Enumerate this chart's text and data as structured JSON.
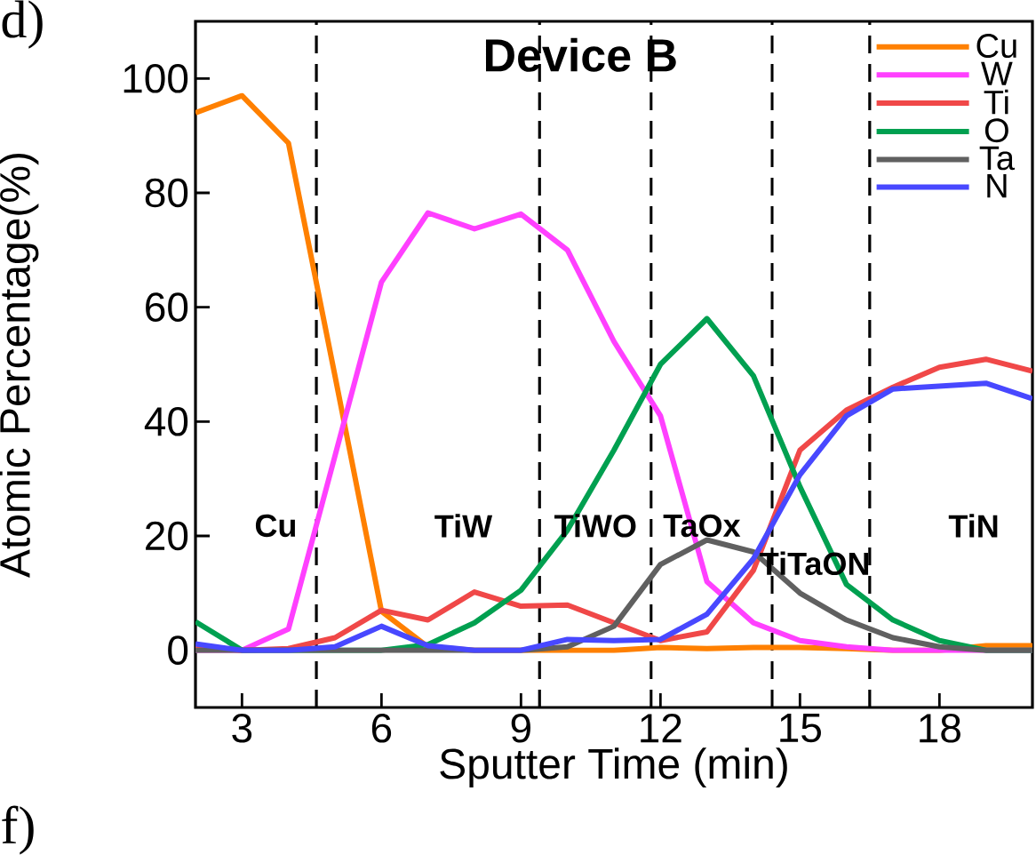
{
  "chart_data": {
    "type": "line",
    "title": "Device B",
    "xlabel": "Sputter Time (min)",
    "ylabel": "Atomic Percentage(%)",
    "x": [
      2,
      3,
      4,
      5,
      6,
      7,
      8,
      9,
      10,
      11,
      12,
      13,
      14,
      15,
      16,
      17,
      18,
      19,
      20
    ],
    "series": [
      {
        "name": "Cu",
        "color": "#ff8000",
        "values": [
          94,
          97,
          88.7,
          48,
          6.8,
          0.6,
          0,
          0,
          0,
          0,
          0.5,
          0.3,
          0.5,
          0.5,
          0.3,
          0,
          0,
          0.8,
          0.8
        ]
      },
      {
        "name": "W",
        "color": "#ff40ff",
        "values": [
          0,
          0,
          3.7,
          34,
          64.4,
          76.5,
          73.7,
          76.3,
          70,
          54,
          41,
          12,
          4.8,
          1.7,
          0.6,
          0,
          0,
          0,
          0
        ]
      },
      {
        "name": "Ti",
        "color": "#f04848",
        "values": [
          0.6,
          0,
          0.3,
          2.2,
          7,
          5.3,
          10.2,
          7.7,
          7.9,
          4.8,
          1.7,
          3.2,
          14,
          35,
          42,
          46,
          49.5,
          50.9,
          48.8
        ]
      },
      {
        "name": "O",
        "color": "#00a050",
        "values": [
          5,
          0,
          0,
          0,
          0,
          1,
          4.8,
          10.5,
          21,
          35,
          50,
          58,
          48,
          28.6,
          11.5,
          5.3,
          1.7,
          0,
          0
        ]
      },
      {
        "name": "Ta",
        "color": "#606060",
        "values": [
          0,
          0,
          0,
          0,
          0,
          0,
          0,
          0,
          0.6,
          4.2,
          15,
          19.3,
          17.2,
          10,
          5.3,
          2.2,
          0.6,
          0,
          0
        ]
      },
      {
        "name": "N",
        "color": "#4848ff",
        "values": [
          1.1,
          0,
          0,
          0.6,
          4.2,
          0.8,
          0,
          0,
          1.9,
          1.7,
          1.9,
          6.3,
          16,
          30.7,
          41,
          45.7,
          46.2,
          46.7,
          44
        ]
      }
    ],
    "xlim": [
      2,
      20
    ],
    "ylim": [
      -10,
      110
    ],
    "xticks": [
      3,
      6,
      9,
      12,
      15,
      18
    ],
    "yticks": [
      0,
      20,
      40,
      60,
      80,
      100
    ],
    "ref_lines": [
      {
        "axis": "x",
        "value": 4.6,
        "line_style": "dashed",
        "color": "#000000"
      },
      {
        "axis": "x",
        "value": 9.4,
        "line_style": "dashed",
        "color": "#000000"
      },
      {
        "axis": "x",
        "value": 11.8,
        "line_style": "dashed",
        "color": "#000000"
      },
      {
        "axis": "x",
        "value": 14.4,
        "line_style": "dashed",
        "color": "#000000"
      },
      {
        "axis": "x",
        "value": 16.5,
        "line_style": "dashed",
        "color": "#000000"
      }
    ],
    "annotations": [
      "Cu",
      "TiW",
      "TiWO",
      "TaOx",
      "TiTaON",
      "TiN",
      "d)",
      "f)"
    ],
    "legend": "top right",
    "grid": false,
    "marker": "none",
    "line_style": "solid"
  }
}
